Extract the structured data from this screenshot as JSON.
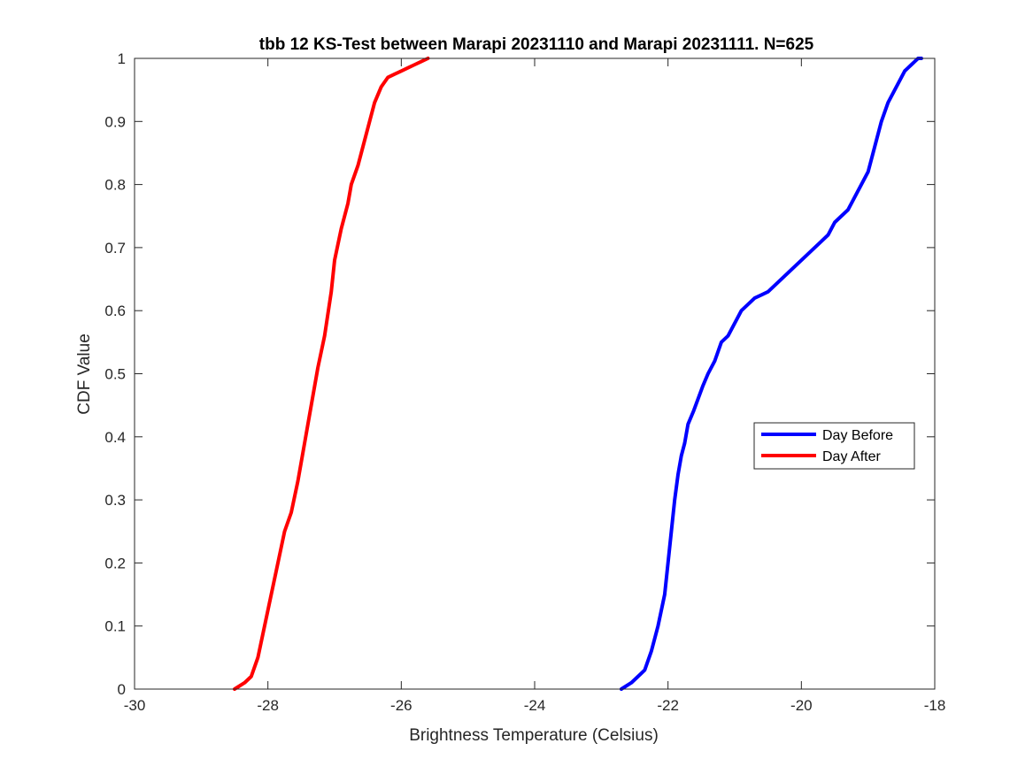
{
  "chart_data": {
    "type": "line",
    "title": "tbb 12 KS-Test between Marapi 20231110 and Marapi 20231111. N=625",
    "xlabel": "Brightness Temperature (Celsius)",
    "ylabel": "CDF Value",
    "xlim": [
      -30,
      -18
    ],
    "ylim": [
      0,
      1
    ],
    "xticks": [
      -30,
      -28,
      -26,
      -24,
      -22,
      -20,
      -18
    ],
    "yticks": [
      0,
      0.1,
      0.2,
      0.3,
      0.4,
      0.5,
      0.6,
      0.7,
      0.8,
      0.9,
      1
    ],
    "xtick_labels": [
      "-30",
      "-28",
      "-26",
      "-24",
      "-22",
      "-20",
      "-18"
    ],
    "ytick_labels": [
      "0",
      "0.1",
      "0.2",
      "0.3",
      "0.4",
      "0.5",
      "0.6",
      "0.7",
      "0.8",
      "0.9",
      "1"
    ],
    "grid": false,
    "legend_position": "right",
    "series": [
      {
        "name": "Day Before",
        "color": "#0000ff",
        "x": [
          -22.7,
          -22.55,
          -22.45,
          -22.35,
          -22.25,
          -22.15,
          -22.05,
          -22.0,
          -21.95,
          -21.9,
          -21.85,
          -21.8,
          -21.75,
          -21.7,
          -21.62,
          -21.55,
          -21.48,
          -21.4,
          -21.3,
          -21.2,
          -21.1,
          -21.05,
          -21.0,
          -20.9,
          -20.8,
          -20.7,
          -20.6,
          -20.5,
          -20.4,
          -20.3,
          -20.2,
          -20.1,
          -20.0,
          -19.9,
          -19.8,
          -19.7,
          -19.6,
          -19.5,
          -19.4,
          -19.3,
          -19.2,
          -19.1,
          -19.0,
          -18.95,
          -18.9,
          -18.8,
          -18.7,
          -18.6,
          -18.5,
          -18.45,
          -18.4,
          -18.35,
          -18.3,
          -18.25,
          -18.2
        ],
        "y": [
          0,
          0.01,
          0.02,
          0.03,
          0.06,
          0.1,
          0.15,
          0.2,
          0.25,
          0.3,
          0.34,
          0.37,
          0.39,
          0.42,
          0.44,
          0.46,
          0.48,
          0.5,
          0.52,
          0.55,
          0.56,
          0.57,
          0.58,
          0.6,
          0.61,
          0.62,
          0.625,
          0.63,
          0.64,
          0.65,
          0.66,
          0.67,
          0.68,
          0.69,
          0.7,
          0.71,
          0.72,
          0.74,
          0.75,
          0.76,
          0.78,
          0.8,
          0.82,
          0.84,
          0.86,
          0.9,
          0.93,
          0.95,
          0.97,
          0.98,
          0.985,
          0.99,
          0.995,
          1.0,
          1.0
        ]
      },
      {
        "name": "Day After",
        "color": "#ff0000",
        "x": [
          -28.5,
          -28.35,
          -28.25,
          -28.15,
          -28.05,
          -27.95,
          -27.85,
          -27.75,
          -27.65,
          -27.55,
          -27.45,
          -27.35,
          -27.25,
          -27.15,
          -27.05,
          -27.0,
          -26.9,
          -26.8,
          -26.75,
          -26.65,
          -26.55,
          -26.45,
          -26.4,
          -26.3,
          -26.2,
          -26.1,
          -26.0,
          -25.9,
          -25.8,
          -25.7,
          -25.6
        ],
        "y": [
          0,
          0.01,
          0.02,
          0.05,
          0.1,
          0.15,
          0.2,
          0.25,
          0.28,
          0.33,
          0.39,
          0.45,
          0.51,
          0.56,
          0.63,
          0.68,
          0.73,
          0.77,
          0.8,
          0.83,
          0.87,
          0.91,
          0.93,
          0.955,
          0.97,
          0.975,
          0.98,
          0.985,
          0.99,
          0.995,
          1.0
        ]
      }
    ]
  }
}
